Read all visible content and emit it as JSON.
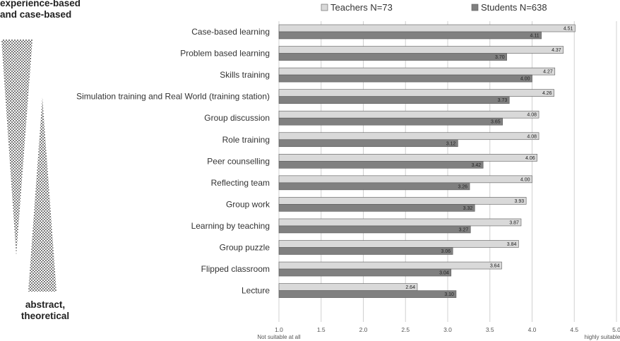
{
  "side_labels": {
    "top": [
      "experience-based",
      "and case-based"
    ],
    "bottom": [
      "abstract,",
      "theoretical"
    ]
  },
  "colors": {
    "teachers": "#d9d9d9",
    "students": "#808080",
    "grid": "#d0d0d0"
  },
  "chart_data": {
    "type": "bar",
    "orientation": "horizontal",
    "categories": [
      "Case-based learning",
      "Problem based learning",
      "Skills training",
      "Simulation training and Real World (training station)",
      "Group discussion",
      "Role training",
      "Peer counselling",
      "Reflecting team",
      "Group work",
      "Learning by teaching",
      "Group puzzle",
      "Flipped classroom",
      "Lecture"
    ],
    "series": [
      {
        "name": "Teachers N=73",
        "values": [
          4.51,
          4.37,
          4.27,
          4.26,
          4.08,
          4.08,
          4.06,
          4.0,
          3.93,
          3.87,
          3.84,
          3.64,
          2.64
        ],
        "labels": [
          "4.51",
          "4.37",
          "4.27",
          "4.26",
          "4.08",
          "4.08",
          "4.06",
          "4.00",
          "3.93",
          "3.87",
          "3.84",
          "3.64",
          "2.64"
        ]
      },
      {
        "name": "Students N=638",
        "values": [
          4.11,
          3.7,
          4.0,
          3.73,
          3.65,
          3.12,
          3.42,
          3.26,
          3.32,
          3.27,
          3.06,
          3.04,
          3.1
        ],
        "labels": [
          "4.11",
          "3.70",
          "4.00",
          "3.73",
          "3.65",
          "3.12",
          "3.42",
          "3.26",
          "3.32",
          "3.27",
          "3.06",
          "3.04",
          "3.10"
        ]
      }
    ],
    "xlim": [
      1.0,
      5.0
    ],
    "xticks": [
      "1.0",
      "1.5",
      "2.0",
      "2.5",
      "3.0",
      "3.5",
      "4.0",
      "4.5",
      "5.0"
    ],
    "x_min_label": "Not suitable at all",
    "x_max_label": "highly suitable",
    "legend_position": "top",
    "grid": true
  }
}
